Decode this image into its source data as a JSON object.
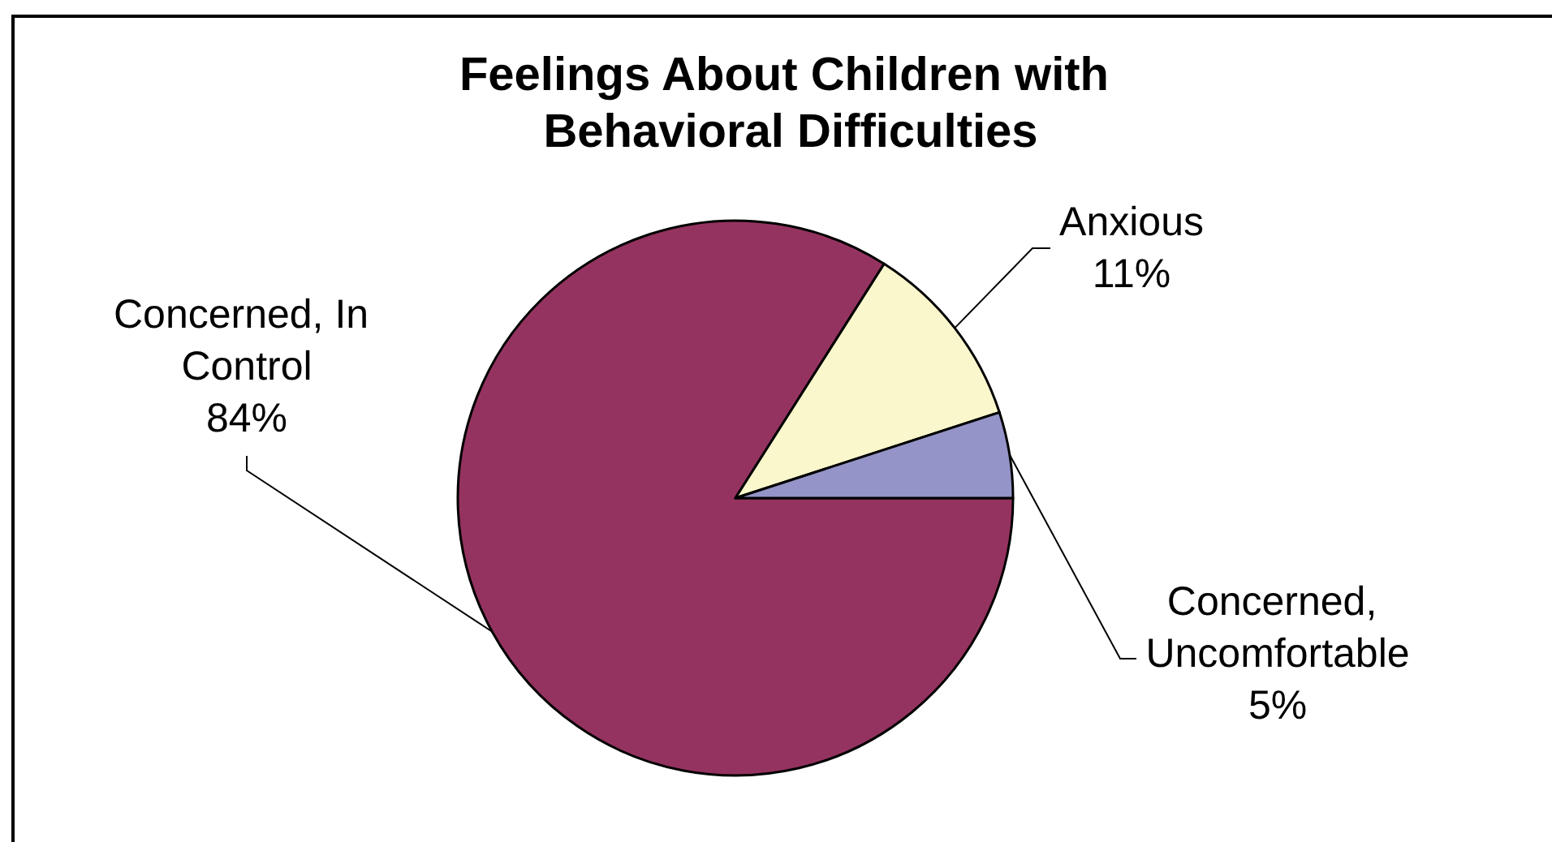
{
  "chart_data": {
    "type": "pie",
    "title": "Feelings About Children with Behavioral Difficulties",
    "categories": [
      "Concerned, In Control",
      "Anxious",
      "Concerned, Uncomfortable"
    ],
    "values": [
      84,
      11,
      5
    ],
    "colors": [
      "#953360",
      "#faf7cc",
      "#9494c8"
    ],
    "value_labels": [
      "84%",
      "11%",
      "5%"
    ]
  }
}
